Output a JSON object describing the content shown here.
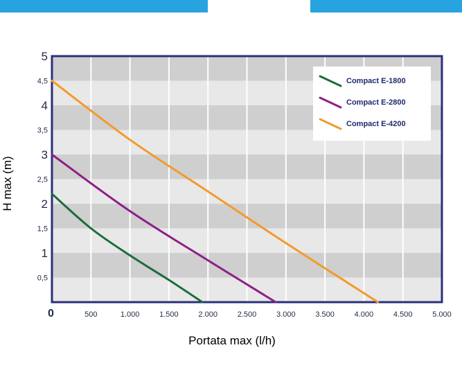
{
  "chart_data": {
    "type": "line",
    "xlabel": "Portata max (l/h)",
    "ylabel": "H max (m)",
    "xlim": [
      0,
      5000
    ],
    "ylim": [
      0,
      5
    ],
    "x_ticks": [
      {
        "value": 0,
        "label": "0"
      },
      {
        "value": 500,
        "label": "500"
      },
      {
        "value": 1000,
        "label": "1.000"
      },
      {
        "value": 1500,
        "label": "1.500"
      },
      {
        "value": 2000,
        "label": "2.000"
      },
      {
        "value": 2500,
        "label": "2.500"
      },
      {
        "value": 3000,
        "label": "3.000"
      },
      {
        "value": 3500,
        "label": "3.500"
      },
      {
        "value": 4000,
        "label": "4.000"
      },
      {
        "value": 4500,
        "label": "4.500"
      },
      {
        "value": 5000,
        "label": "5.000"
      }
    ],
    "y_ticks": [
      {
        "value": 0.5,
        "label": "0,5"
      },
      {
        "value": 1,
        "label": "1"
      },
      {
        "value": 1.5,
        "label": "1,5"
      },
      {
        "value": 2,
        "label": "2"
      },
      {
        "value": 2.5,
        "label": "2,5"
      },
      {
        "value": 3,
        "label": "3"
      },
      {
        "value": 3.5,
        "label": "3,5"
      },
      {
        "value": 4,
        "label": "4"
      },
      {
        "value": 4.5,
        "label": "4,5"
      },
      {
        "value": 5,
        "label": "5"
      }
    ],
    "grid": true,
    "legend_position": "top-right",
    "series": [
      {
        "name": "Compact E-1800",
        "color": "#1e6b3c",
        "x": [
          0,
          500,
          1000,
          1500,
          1930
        ],
        "y": [
          2.2,
          1.5,
          0.95,
          0.45,
          0
        ]
      },
      {
        "name": "Compact E-2800",
        "color": "#8e1f86",
        "x": [
          0,
          1000,
          2000,
          2870
        ],
        "y": [
          3.0,
          1.85,
          0.85,
          0
        ]
      },
      {
        "name": "Compact E-4200",
        "color": "#f39a2b",
        "x": [
          0,
          1000,
          2000,
          3000,
          4180
        ],
        "y": [
          4.5,
          3.3,
          2.25,
          1.2,
          0
        ]
      }
    ]
  }
}
